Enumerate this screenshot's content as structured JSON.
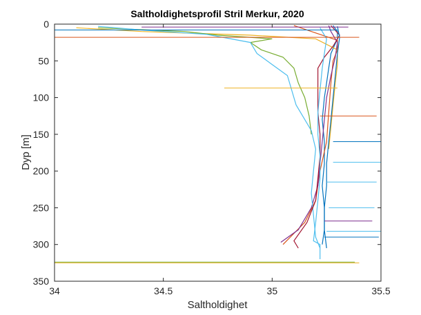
{
  "chart_data": {
    "type": "line",
    "title": "Saltholdighetsprofil Stril Merkur, 2020",
    "xlabel": "Saltholdighet",
    "ylabel": "Dyp [m]",
    "xlim": [
      34,
      35.5
    ],
    "ylim": [
      0,
      350
    ],
    "y_reversed": true,
    "grid": false,
    "xticks": [
      "34",
      "34.5",
      "35",
      "35.5"
    ],
    "yticks": [
      "0",
      "50",
      "100",
      "150",
      "200",
      "250",
      "300",
      "350"
    ],
    "series": [
      {
        "color": "#0072BD",
        "points": [
          [
            35.28,
            2
          ],
          [
            35.3,
            10
          ],
          [
            35.3,
            20
          ],
          [
            35.27,
            40
          ],
          [
            35.26,
            60
          ],
          [
            35.25,
            80
          ],
          [
            35.24,
            100
          ],
          [
            35.23,
            130
          ],
          [
            35.24,
            160
          ],
          [
            35.24,
            190
          ],
          [
            35.23,
            220
          ],
          [
            35.24,
            250
          ],
          [
            35.24,
            280
          ],
          [
            35.25,
            305
          ]
        ]
      },
      {
        "color": "#D95319",
        "points": [
          [
            35.1,
            2
          ],
          [
            35.2,
            12
          ],
          [
            35.3,
            22
          ],
          [
            35.3,
            35
          ],
          [
            35.28,
            50
          ],
          [
            35.27,
            80
          ],
          [
            35.26,
            120
          ],
          [
            35.25,
            160
          ],
          [
            35.22,
            200
          ],
          [
            35.2,
            240
          ],
          [
            35.15,
            270
          ],
          [
            35.05,
            300
          ]
        ]
      },
      {
        "color": "#EDB120",
        "points": [
          [
            34.1,
            5
          ],
          [
            34.4,
            10
          ],
          [
            34.9,
            15
          ],
          [
            35.2,
            20
          ],
          [
            35.3,
            35
          ],
          [
            35.3,
            55
          ],
          [
            35.29,
            80
          ],
          [
            35.28,
            110
          ],
          [
            35.27,
            140
          ],
          [
            35.26,
            170
          ]
        ]
      },
      {
        "color": "#7E2F8E",
        "points": [
          [
            35.26,
            2
          ],
          [
            35.27,
            10
          ],
          [
            35.3,
            25
          ],
          [
            35.29,
            45
          ],
          [
            35.27,
            70
          ],
          [
            35.25,
            100
          ],
          [
            35.24,
            130
          ],
          [
            35.23,
            160
          ],
          [
            35.22,
            190
          ],
          [
            35.21,
            220
          ],
          [
            35.18,
            250
          ],
          [
            35.12,
            280
          ],
          [
            35.04,
            297
          ]
        ]
      },
      {
        "color": "#77AC30",
        "points": [
          [
            34.2,
            5
          ],
          [
            34.6,
            10
          ],
          [
            34.75,
            15
          ],
          [
            35.0,
            20
          ],
          [
            34.9,
            25
          ],
          [
            34.95,
            35
          ],
          [
            35.05,
            45
          ],
          [
            35.1,
            60
          ],
          [
            35.12,
            80
          ],
          [
            35.15,
            100
          ],
          [
            35.17,
            125
          ],
          [
            35.18,
            150
          ]
        ]
      },
      {
        "color": "#4DBEEE",
        "points": [
          [
            34.2,
            3
          ],
          [
            34.4,
            8
          ],
          [
            34.7,
            14
          ],
          [
            34.9,
            25
          ],
          [
            34.93,
            40
          ],
          [
            35.0,
            55
          ],
          [
            35.07,
            70
          ],
          [
            35.09,
            90
          ],
          [
            35.11,
            110
          ],
          [
            35.14,
            125
          ],
          [
            35.18,
            145
          ],
          [
            35.2,
            170
          ],
          [
            35.19,
            200
          ],
          [
            35.18,
            230
          ],
          [
            35.19,
            260
          ],
          [
            35.2,
            290
          ],
          [
            35.22,
            305
          ]
        ]
      },
      {
        "color": "#A2142F",
        "points": [
          [
            35.27,
            2
          ],
          [
            35.31,
            15
          ],
          [
            35.28,
            30
          ],
          [
            35.24,
            45
          ],
          [
            35.21,
            60
          ],
          [
            35.21,
            90
          ],
          [
            35.21,
            120
          ],
          [
            35.22,
            150
          ],
          [
            35.22,
            180
          ],
          [
            35.21,
            210
          ],
          [
            35.2,
            240
          ],
          [
            35.16,
            270
          ],
          [
            35.1,
            295
          ],
          [
            35.12,
            305
          ]
        ]
      },
      {
        "color": "#0072BD",
        "points": [
          [
            35.3,
            3
          ],
          [
            35.31,
            18
          ],
          [
            35.3,
            40
          ],
          [
            35.29,
            70
          ],
          [
            35.28,
            100
          ],
          [
            35.27,
            130
          ],
          [
            35.26,
            160
          ],
          [
            35.25,
            190
          ],
          [
            35.25,
            220
          ],
          [
            35.24,
            250
          ],
          [
            35.24,
            280
          ],
          [
            35.23,
            300
          ]
        ]
      },
      {
        "color": "#4DBEEE",
        "points": [
          [
            35.22,
            5
          ],
          [
            35.25,
            20
          ],
          [
            35.24,
            40
          ],
          [
            35.23,
            60
          ],
          [
            35.22,
            90
          ],
          [
            35.21,
            120
          ],
          [
            35.21,
            150
          ],
          [
            35.22,
            180
          ],
          [
            35.22,
            210
          ],
          [
            35.21,
            240
          ],
          [
            35.2,
            270
          ],
          [
            35.19,
            295
          ],
          [
            35.22,
            300
          ],
          [
            35.22,
            320
          ]
        ]
      }
    ],
    "spikes": [
      {
        "color": "#EDB120",
        "y": 325,
        "x0": 34.0,
        "x1": 35.4
      },
      {
        "color": "#77AC30",
        "y": 324,
        "x0": 34.0,
        "x1": 35.38
      },
      {
        "color": "#0072BD",
        "y": 8,
        "x0": 34.0,
        "x1": 35.3
      },
      {
        "color": "#D95319",
        "y": 18,
        "x0": 34.0,
        "x1": 35.4
      },
      {
        "color": "#7E2F8E",
        "y": 4,
        "x0": 34.4,
        "x1": 35.35
      },
      {
        "color": "#EDB120",
        "y": 87,
        "x0": 34.78,
        "x1": 35.3
      },
      {
        "color": "#D95319",
        "y": 125,
        "x0": 35.22,
        "x1": 35.48
      },
      {
        "color": "#0072BD",
        "y": 160,
        "x0": 35.28,
        "x1": 35.5
      },
      {
        "color": "#4DBEEE",
        "y": 188,
        "x0": 35.28,
        "x1": 35.5
      },
      {
        "color": "#4DBEEE",
        "y": 215,
        "x0": 35.25,
        "x1": 35.48
      },
      {
        "color": "#4DBEEE",
        "y": 250,
        "x0": 35.26,
        "x1": 35.47
      },
      {
        "color": "#7E2F8E",
        "y": 268,
        "x0": 35.24,
        "x1": 35.46
      },
      {
        "color": "#4DBEEE",
        "y": 282,
        "x0": 35.25,
        "x1": 35.5
      },
      {
        "color": "#0072BD",
        "y": 290,
        "x0": 35.24,
        "x1": 35.49
      }
    ]
  }
}
